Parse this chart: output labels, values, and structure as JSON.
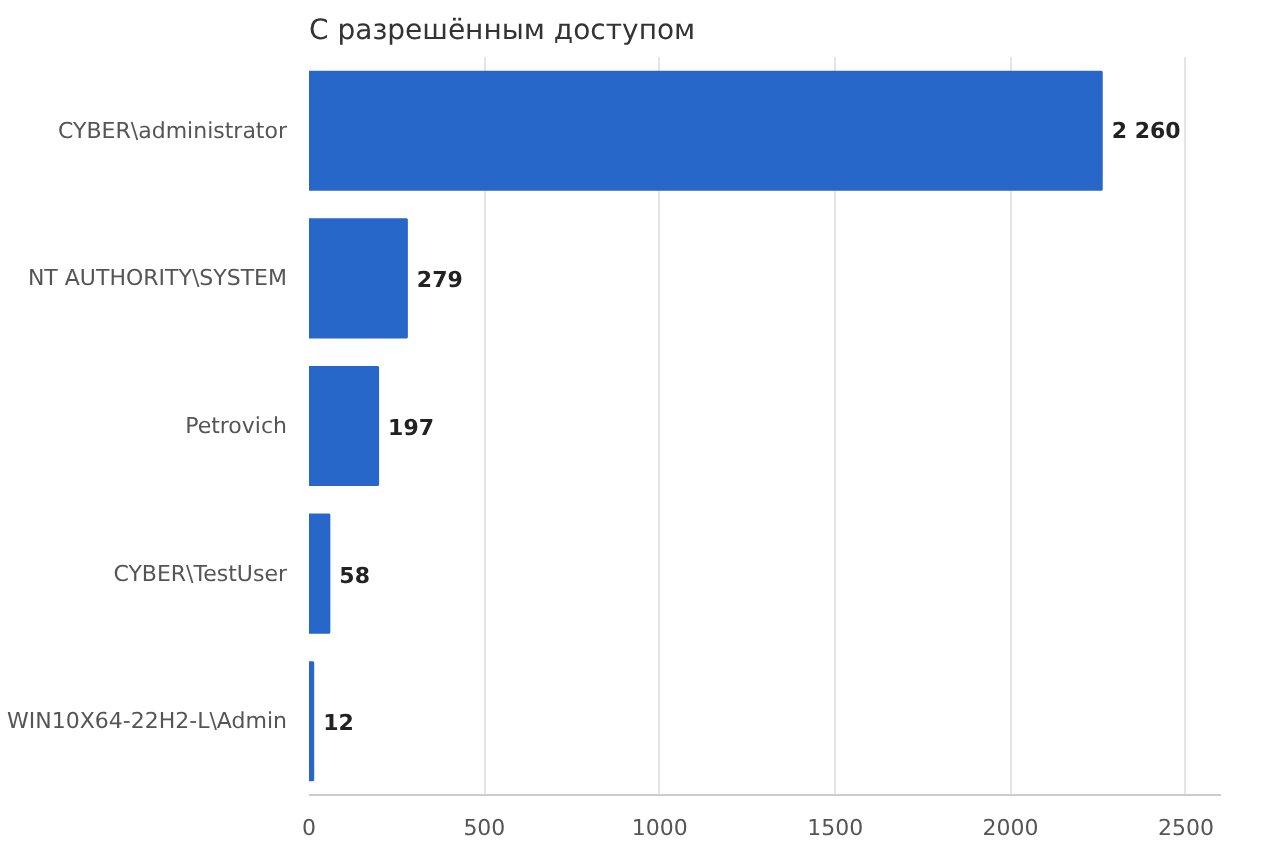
{
  "chart_data": {
    "type": "bar",
    "orientation": "horizontal",
    "title": "С разрешённым доступом",
    "categories": [
      "CYBER\\administrator",
      "NT AUTHORITY\\SYSTEM",
      "Petrovich",
      "CYBER\\TestUser",
      "WIN10X64-22H2-L\\Admin"
    ],
    "values": [
      2260,
      279,
      197,
      58,
      12
    ],
    "value_labels": [
      "2 260",
      "279",
      "197",
      "58",
      "12"
    ],
    "color": "#2767c9",
    "xlim": [
      0,
      2600
    ],
    "xticks": [
      0,
      500,
      1000,
      1500,
      2000,
      2500
    ],
    "grid": "x"
  }
}
